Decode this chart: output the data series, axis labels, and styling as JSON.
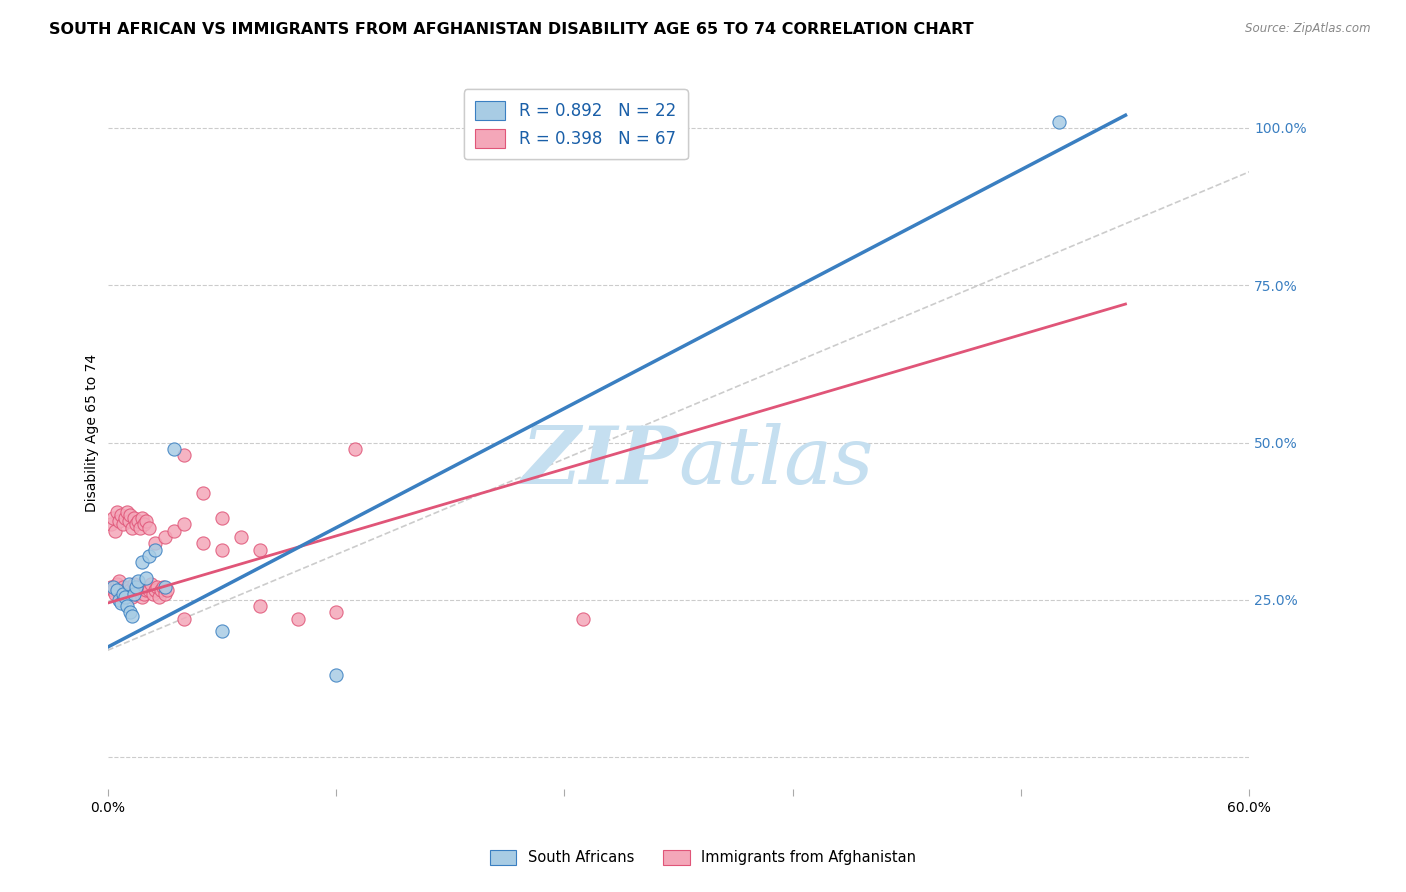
{
  "title": "SOUTH AFRICAN VS IMMIGRANTS FROM AFGHANISTAN DISABILITY AGE 65 TO 74 CORRELATION CHART",
  "source": "Source: ZipAtlas.com",
  "ylabel": "Disability Age 65 to 74",
  "legend_label_blue": "R = 0.892   N = 22",
  "legend_label_pink": "R = 0.398   N = 67",
  "legend_bottom_blue": "South Africans",
  "legend_bottom_pink": "Immigrants from Afghanistan",
  "xlim": [
    0.0,
    0.6
  ],
  "ylim": [
    -0.05,
    1.08
  ],
  "xticks": [
    0.0,
    0.12,
    0.24,
    0.36,
    0.48,
    0.6
  ],
  "xtick_labels": [
    "0.0%",
    "",
    "",
    "",
    "",
    "60.0%"
  ],
  "yticks_right": [
    0.0,
    0.25,
    0.5,
    0.75,
    1.0
  ],
  "ytick_labels_right": [
    "",
    "25.0%",
    "50.0%",
    "75.0%",
    "100.0%"
  ],
  "blue_color": "#a8cce4",
  "blue_line_color": "#3a7fc1",
  "pink_color": "#f4a7b9",
  "pink_line_color": "#e05578",
  "gray_dash_color": "#cccccc",
  "watermark_zip_color": "#c5dff0",
  "watermark_atlas_color": "#c5dff0",
  "background_color": "#ffffff",
  "grid_color": "#cccccc",
  "title_fontsize": 11.5,
  "tick_fontsize": 10,
  "right_tick_color": "#3a7fc1",
  "blue_scatter_x": [
    0.003,
    0.005,
    0.006,
    0.007,
    0.008,
    0.009,
    0.01,
    0.011,
    0.012,
    0.013,
    0.014,
    0.015,
    0.016,
    0.018,
    0.02,
    0.022,
    0.025,
    0.03,
    0.035,
    0.12,
    0.5,
    0.06
  ],
  "blue_scatter_y": [
    0.27,
    0.265,
    0.25,
    0.245,
    0.26,
    0.255,
    0.24,
    0.275,
    0.23,
    0.225,
    0.26,
    0.27,
    0.28,
    0.31,
    0.285,
    0.32,
    0.33,
    0.27,
    0.49,
    0.13,
    1.01,
    0.2
  ],
  "pink_scatter_x": [
    0.002,
    0.003,
    0.004,
    0.005,
    0.006,
    0.007,
    0.008,
    0.009,
    0.01,
    0.011,
    0.012,
    0.013,
    0.014,
    0.015,
    0.016,
    0.017,
    0.018,
    0.019,
    0.02,
    0.021,
    0.022,
    0.023,
    0.024,
    0.025,
    0.026,
    0.027,
    0.028,
    0.029,
    0.03,
    0.031,
    0.002,
    0.003,
    0.004,
    0.005,
    0.006,
    0.007,
    0.008,
    0.009,
    0.01,
    0.011,
    0.012,
    0.013,
    0.014,
    0.015,
    0.016,
    0.017,
    0.018,
    0.019,
    0.02,
    0.022,
    0.025,
    0.03,
    0.035,
    0.04,
    0.05,
    0.06,
    0.08,
    0.1,
    0.12,
    0.04,
    0.04,
    0.05,
    0.06,
    0.07,
    0.08,
    0.13,
    0.25
  ],
  "pink_scatter_y": [
    0.27,
    0.265,
    0.26,
    0.275,
    0.28,
    0.255,
    0.27,
    0.265,
    0.26,
    0.27,
    0.265,
    0.255,
    0.275,
    0.26,
    0.265,
    0.27,
    0.255,
    0.26,
    0.265,
    0.27,
    0.265,
    0.275,
    0.26,
    0.265,
    0.27,
    0.255,
    0.265,
    0.27,
    0.26,
    0.265,
    0.37,
    0.38,
    0.36,
    0.39,
    0.375,
    0.385,
    0.37,
    0.38,
    0.39,
    0.375,
    0.385,
    0.365,
    0.38,
    0.37,
    0.375,
    0.365,
    0.38,
    0.37,
    0.375,
    0.365,
    0.34,
    0.35,
    0.36,
    0.37,
    0.34,
    0.33,
    0.24,
    0.22,
    0.23,
    0.22,
    0.48,
    0.42,
    0.38,
    0.35,
    0.33,
    0.49,
    0.22
  ],
  "blue_line_x": [
    0.0,
    0.535
  ],
  "blue_line_y": [
    0.175,
    1.02
  ],
  "pink_line_x": [
    0.0,
    0.535
  ],
  "pink_line_y": [
    0.245,
    0.72
  ],
  "gray_line_x": [
    0.0,
    0.6
  ],
  "gray_line_y": [
    0.17,
    0.93
  ]
}
